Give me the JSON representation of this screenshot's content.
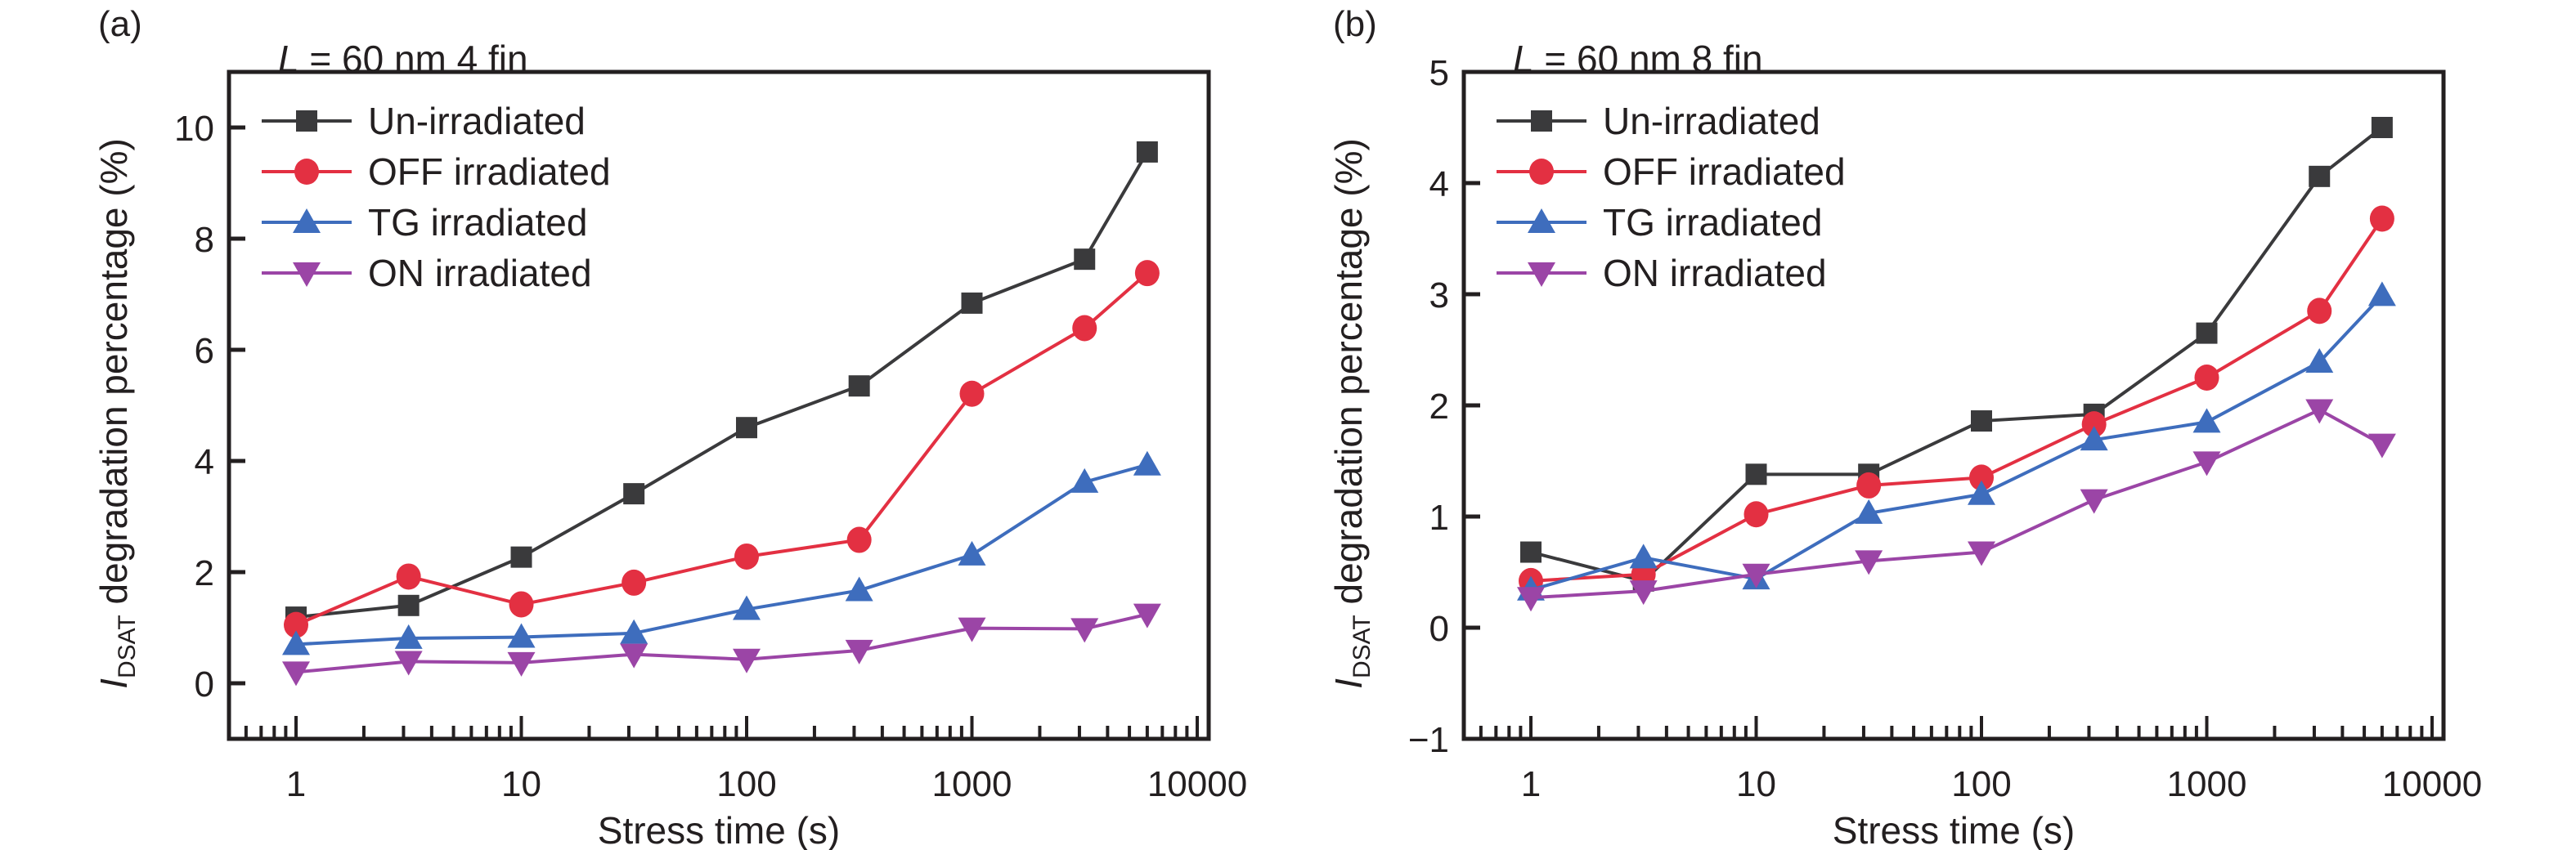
{
  "chart_data": [
    {
      "type": "line",
      "panel_label": "(a)",
      "annotation": {
        "italic": "L",
        "rest": " = 60 nm 4 fin"
      },
      "xlabel": "Stress time (s)",
      "ylabel_main": "I",
      "ylabel_sub": "DSAT",
      "ylabel_rest": " degradation percentage (%)",
      "xscale": "log",
      "xlim": [
        0.55,
        10000
      ],
      "ylim": [
        -1,
        11
      ],
      "xticks": [
        1,
        10,
        100,
        1000,
        10000
      ],
      "xtick_labels": [
        "1",
        "10",
        "100",
        "1000",
        "10000"
      ],
      "yticks": [
        0,
        2,
        4,
        6,
        8,
        10
      ],
      "ytick_labels": [
        "0",
        "2",
        "4",
        "6",
        "8",
        "10"
      ],
      "legend_position": "top-left",
      "x": [
        1,
        3.16,
        10,
        31.6,
        100,
        316,
        1000,
        3162,
        6000
      ],
      "series": [
        {
          "name": "Un-irradiated",
          "color": "#3a3a3c",
          "marker": "square",
          "values": [
            1.19,
            1.4,
            2.27,
            3.41,
            4.6,
            5.35,
            6.84,
            7.63,
            9.56
          ]
        },
        {
          "name": "OFF irradiated",
          "color": "#e33042",
          "marker": "circle",
          "values": [
            1.05,
            1.92,
            1.42,
            1.81,
            2.28,
            2.58,
            5.21,
            6.39,
            7.38
          ]
        },
        {
          "name": "TG irradiated",
          "color": "#3e6dbd",
          "marker": "triangle-up",
          "values": [
            0.7,
            0.81,
            0.83,
            0.9,
            1.33,
            1.67,
            2.31,
            3.62,
            3.93
          ]
        },
        {
          "name": "ON irradiated",
          "color": "#9b45a6",
          "marker": "triangle-down",
          "values": [
            0.2,
            0.39,
            0.37,
            0.52,
            0.43,
            0.59,
            0.99,
            0.98,
            1.24
          ]
        }
      ]
    },
    {
      "type": "line",
      "panel_label": "(b)",
      "annotation": {
        "italic": "L",
        "rest": " = 60 nm 8 fin"
      },
      "xlabel": "Stress time (s)",
      "ylabel_main": "I",
      "ylabel_sub": "DSAT",
      "ylabel_rest": " degradation percentage (%)",
      "xscale": "log",
      "xlim": [
        0.55,
        10000
      ],
      "ylim": [
        -1,
        5
      ],
      "xticks": [
        1,
        10,
        100,
        1000,
        10000
      ],
      "xtick_labels": [
        "1",
        "10",
        "100",
        "1000",
        "10000"
      ],
      "yticks": [
        -1,
        0,
        1,
        2,
        3,
        4,
        5
      ],
      "ytick_labels": [
        "−1",
        "0",
        "1",
        "2",
        "3",
        "4",
        "5"
      ],
      "legend_position": "top-left",
      "x": [
        1,
        3.16,
        10,
        31.6,
        100,
        316,
        1000,
        3162,
        6000
      ],
      "series": [
        {
          "name": "Un-irradiated",
          "color": "#3a3a3c",
          "marker": "square",
          "values": [
            0.68,
            0.42,
            1.38,
            1.38,
            1.86,
            1.92,
            2.65,
            4.06,
            4.5
          ]
        },
        {
          "name": "OFF irradiated",
          "color": "#e33042",
          "marker": "circle",
          "values": [
            0.42,
            0.48,
            1.02,
            1.28,
            1.35,
            1.83,
            2.25,
            2.85,
            3.68
          ]
        },
        {
          "name": "TG irradiated",
          "color": "#3e6dbd",
          "marker": "triangle-up",
          "values": [
            0.34,
            0.63,
            0.44,
            1.03,
            1.2,
            1.69,
            1.85,
            2.39,
            2.99
          ]
        },
        {
          "name": "ON irradiated",
          "color": "#9b45a6",
          "marker": "triangle-down",
          "values": [
            0.27,
            0.33,
            0.48,
            0.6,
            0.68,
            1.15,
            1.49,
            1.96,
            1.65
          ]
        }
      ]
    }
  ]
}
